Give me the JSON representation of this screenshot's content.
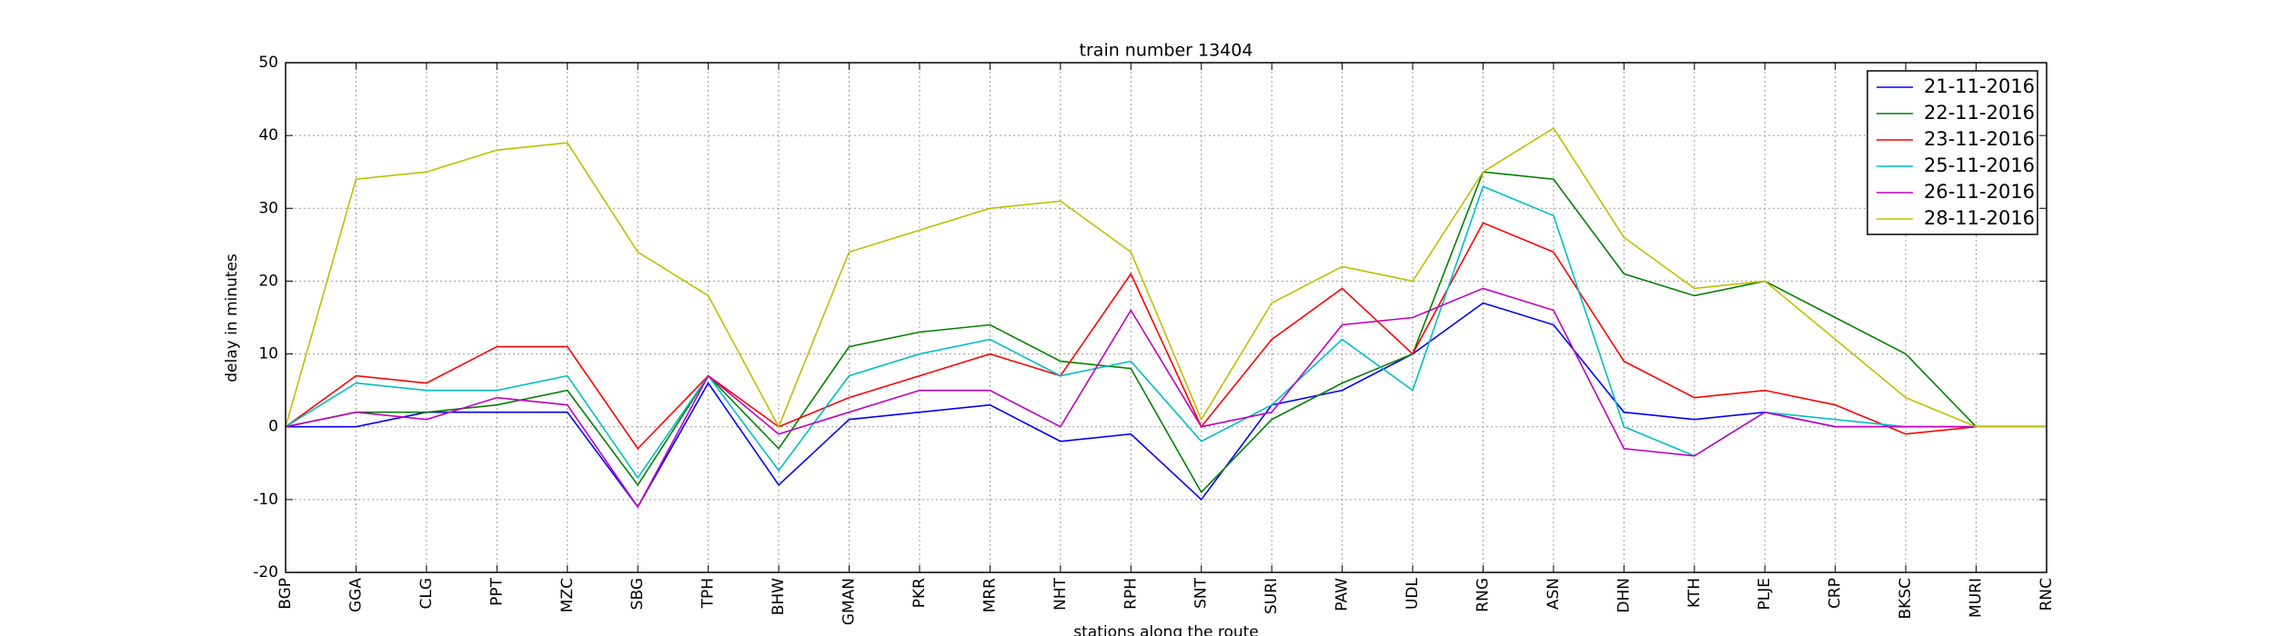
{
  "chart_data": {
    "type": "line",
    "title": "train number 13404",
    "xlabel": "stations along the route",
    "ylabel": "delay in minutes",
    "categories": [
      "BGP",
      "GGA",
      "CLG",
      "PPT",
      "MZC",
      "SBG",
      "TPH",
      "BHW",
      "GMAN",
      "PKR",
      "MRR",
      "NHT",
      "RPH",
      "SNT",
      "SURI",
      "PAW",
      "UDL",
      "RNG",
      "ASN",
      "DHN",
      "KTH",
      "PLJE",
      "CRP",
      "BKSC",
      "MURI",
      "RNC"
    ],
    "series": [
      {
        "name": "21-11-2016",
        "color": "#0000ff",
        "values": [
          0,
          0,
          2,
          2,
          2,
          -11,
          6,
          -8,
          1,
          2,
          3,
          -2,
          -1,
          -10,
          3,
          5,
          10,
          17,
          14,
          2,
          1,
          2,
          0,
          0,
          0,
          0
        ]
      },
      {
        "name": "22-11-2016",
        "color": "#008000",
        "values": [
          0,
          2,
          2,
          3,
          5,
          -8,
          7,
          -3,
          11,
          13,
          14,
          9,
          8,
          -9,
          1,
          6,
          10,
          35,
          34,
          21,
          18,
          20,
          15,
          10,
          0,
          0
        ]
      },
      {
        "name": "23-11-2016",
        "color": "#ff0000",
        "values": [
          0,
          7,
          6,
          11,
          11,
          -3,
          7,
          0,
          4,
          7,
          10,
          7,
          21,
          0,
          12,
          19,
          10,
          28,
          24,
          9,
          4,
          5,
          3,
          -1,
          0,
          0
        ]
      },
      {
        "name": "25-11-2016",
        "color": "#00bfbf",
        "values": [
          0,
          6,
          5,
          5,
          7,
          -7,
          7,
          -6,
          7,
          10,
          12,
          7,
          9,
          -2,
          3,
          12,
          5,
          33,
          29,
          0,
          -4,
          2,
          1,
          0,
          0,
          0
        ]
      },
      {
        "name": "26-11-2016",
        "color": "#bf00bf",
        "values": [
          0,
          2,
          1,
          4,
          3,
          -11,
          7,
          -1,
          2,
          5,
          5,
          0,
          16,
          0,
          2,
          14,
          15,
          19,
          16,
          -3,
          -4,
          2,
          0,
          0,
          0,
          0
        ]
      },
      {
        "name": "28-11-2016",
        "color": "#bfbf00",
        "values": [
          0,
          34,
          35,
          38,
          39,
          24,
          18,
          0,
          24,
          27,
          30,
          31,
          24,
          1,
          17,
          22,
          20,
          35,
          41,
          26,
          19,
          20,
          12,
          4,
          0,
          0
        ]
      }
    ],
    "ylim": [
      -20,
      50
    ],
    "yticks": [
      -20,
      -10,
      0,
      10,
      20,
      30,
      40,
      50
    ],
    "grid": true,
    "legend": "upper right"
  }
}
